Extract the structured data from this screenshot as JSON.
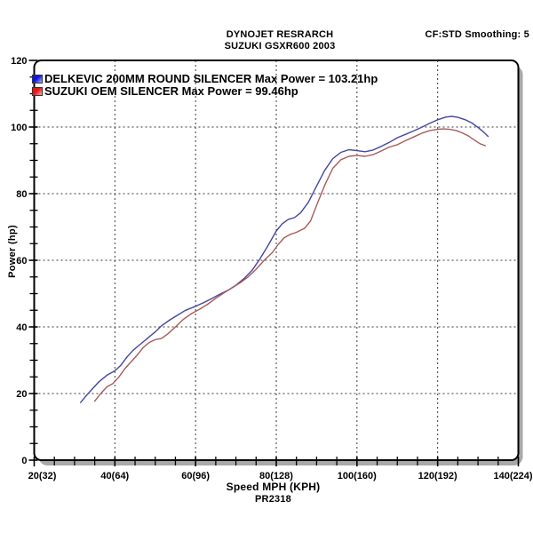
{
  "header": {
    "line1": "DYNOJET RESRARCH",
    "line2": "SUZUKI GSXR600 2003",
    "right": "CF:STD Smoothing: 5"
  },
  "legend": [
    {
      "label": "DELKEVIC 200MM ROUND SILENCER Max Power = 103.21hp",
      "swatch_dark": "#1515d6",
      "swatch_light": "#a8b8ff"
    },
    {
      "label": "SUZUKI OEM SILENCER Max Power = 99.46hp",
      "swatch_dark": "#e01818",
      "swatch_light": "#ffb0b0"
    }
  ],
  "axes": {
    "y_title": "Power (hp)",
    "x_title": "Speed MPH (KPH)",
    "footer": "PR2318"
  },
  "chart_data": {
    "type": "line",
    "title": "DYNOJET RESRARCH SUZUKI GSXR600 2003",
    "xlabel": "Speed MPH (KPH)",
    "ylabel": "Power (hp)",
    "xlim": [
      20,
      140
    ],
    "ylim": [
      0,
      120
    ],
    "x_major_ticks": [
      20,
      40,
      60,
      80,
      100,
      120,
      140
    ],
    "x_tick_labels": [
      "20(32)",
      "40(64)",
      "60(96)",
      "80(128)",
      "100(160)",
      "120(192)",
      "140(224)"
    ],
    "y_major_ticks": [
      0,
      20,
      40,
      60,
      80,
      100,
      120
    ],
    "y_tick_labels": [
      "0",
      "20",
      "40",
      "60",
      "80",
      "100",
      "120"
    ],
    "x_minor_step": 5,
    "y_minor_step": 5,
    "grid": "dotted lines at major ticks, frame box with rounded corners and gray drop shadow",
    "legend_position": "top-left inside plot",
    "series": [
      {
        "name": "DELKEVIC 200MM ROUND SILENCER",
        "max_power_hp": 103.21,
        "line_color": "#4646a2",
        "points": [
          [
            31.5,
            17.3
          ],
          [
            33,
            19.5
          ],
          [
            34.5,
            21.5
          ],
          [
            36,
            23.5
          ],
          [
            38,
            25.5
          ],
          [
            40,
            26.8
          ],
          [
            41.5,
            28.5
          ],
          [
            43,
            31
          ],
          [
            44.5,
            33
          ],
          [
            46,
            34.5
          ],
          [
            48,
            36.5
          ],
          [
            50,
            38.5
          ],
          [
            51.5,
            40.3
          ],
          [
            53.5,
            42
          ],
          [
            55.5,
            43.5
          ],
          [
            57.5,
            45
          ],
          [
            60,
            46.2
          ],
          [
            62,
            47.3
          ],
          [
            64,
            48.5
          ],
          [
            66,
            49.8
          ],
          [
            68,
            51
          ],
          [
            70,
            52.5
          ],
          [
            72,
            54.5
          ],
          [
            74,
            57
          ],
          [
            76,
            60.5
          ],
          [
            78,
            64.5
          ],
          [
            80,
            68.8
          ],
          [
            81.5,
            71
          ],
          [
            83,
            72.3
          ],
          [
            84.5,
            72.8
          ],
          [
            86,
            74.2
          ],
          [
            88,
            77.5
          ],
          [
            90,
            82.3
          ],
          [
            92,
            87
          ],
          [
            94,
            90.5
          ],
          [
            96,
            92.4
          ],
          [
            98,
            93.2
          ],
          [
            100,
            92.9
          ],
          [
            102,
            92.6
          ],
          [
            104,
            93.1
          ],
          [
            106,
            94.2
          ],
          [
            108,
            95.4
          ],
          [
            110,
            96.8
          ],
          [
            112,
            97.8
          ],
          [
            114,
            98.8
          ],
          [
            116,
            99.9
          ],
          [
            118,
            101.1
          ],
          [
            120,
            102.2
          ],
          [
            122,
            103
          ],
          [
            123.5,
            103.2
          ],
          [
            125,
            102.9
          ],
          [
            127,
            102.1
          ],
          [
            128.5,
            101.2
          ],
          [
            130,
            99.9
          ],
          [
            131.3,
            98.6
          ],
          [
            132.5,
            97.2
          ]
        ]
      },
      {
        "name": "SUZUKI OEM SILENCER",
        "max_power_hp": 99.46,
        "line_color": "#a85b5b",
        "points": [
          [
            35,
            17.7
          ],
          [
            36.5,
            20
          ],
          [
            38,
            22
          ],
          [
            39.5,
            23
          ],
          [
            41,
            25
          ],
          [
            42.5,
            27.5
          ],
          [
            44,
            29.5
          ],
          [
            45.5,
            31.5
          ],
          [
            47,
            33.8
          ],
          [
            48.5,
            35.3
          ],
          [
            50,
            36.2
          ],
          [
            51.5,
            36.5
          ],
          [
            53,
            37.8
          ],
          [
            55,
            40
          ],
          [
            57,
            42.3
          ],
          [
            59,
            44
          ],
          [
            61,
            45.3
          ],
          [
            63,
            46.8
          ],
          [
            65,
            48.6
          ],
          [
            67,
            50.2
          ],
          [
            69,
            51.7
          ],
          [
            71,
            53.2
          ],
          [
            73,
            55
          ],
          [
            75,
            57.3
          ],
          [
            77,
            60
          ],
          [
            79,
            62.3
          ],
          [
            80.5,
            64.8
          ],
          [
            82,
            66.8
          ],
          [
            83.5,
            67.8
          ],
          [
            85,
            68.4
          ],
          [
            87,
            69.6
          ],
          [
            88.5,
            71.8
          ],
          [
            90,
            76.5
          ],
          [
            92,
            82.5
          ],
          [
            94,
            87.6
          ],
          [
            96,
            90.2
          ],
          [
            98,
            91.2
          ],
          [
            100,
            91.5
          ],
          [
            102,
            91.2
          ],
          [
            104,
            91.7
          ],
          [
            106,
            92.8
          ],
          [
            108,
            94
          ],
          [
            110,
            94.7
          ],
          [
            112,
            95.9
          ],
          [
            114,
            97
          ],
          [
            116,
            98.1
          ],
          [
            118,
            98.9
          ],
          [
            120,
            99.3
          ],
          [
            121.5,
            99.45
          ],
          [
            123,
            99.3
          ],
          [
            124.5,
            99
          ],
          [
            126,
            98.3
          ],
          [
            127.5,
            97.4
          ],
          [
            129,
            96.2
          ],
          [
            130.5,
            95
          ],
          [
            131.8,
            94.4
          ]
        ]
      }
    ]
  }
}
